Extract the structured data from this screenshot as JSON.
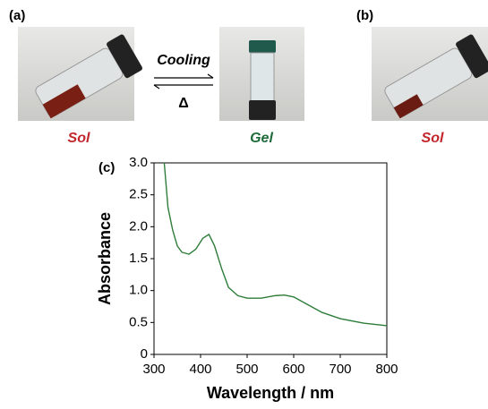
{
  "panels": {
    "a": "(a)",
    "b": "(b)",
    "c": "(c)",
    "sol_a": "Sol",
    "gel": "Gel",
    "sol_b": "Sol",
    "cooling": "Cooling",
    "heating": "Δ"
  },
  "chart_data": {
    "type": "line",
    "xlabel": "Wavelength / nm",
    "ylabel": "Absorbance",
    "color": "#2e7d3a",
    "x": [
      322,
      330,
      340,
      350,
      360,
      375,
      390,
      405,
      418,
      430,
      445,
      460,
      480,
      500,
      530,
      560,
      580,
      600,
      630,
      660,
      700,
      750,
      800
    ],
    "values": [
      3.0,
      2.3,
      1.95,
      1.7,
      1.6,
      1.57,
      1.65,
      1.82,
      1.88,
      1.7,
      1.35,
      1.05,
      0.92,
      0.88,
      0.88,
      0.92,
      0.93,
      0.9,
      0.78,
      0.66,
      0.56,
      0.49,
      0.45
    ],
    "xlim": [
      300,
      800
    ],
    "ylim": [
      0,
      3
    ],
    "xticks": [
      300,
      400,
      500,
      600,
      700,
      800
    ],
    "yticks": [
      0,
      0.5,
      {
        "value": 1,
        "label": "1.0"
      },
      1.5,
      {
        "value": 2,
        "label": "2.0"
      },
      2.5,
      {
        "value": 3,
        "label": "3.0"
      }
    ]
  }
}
